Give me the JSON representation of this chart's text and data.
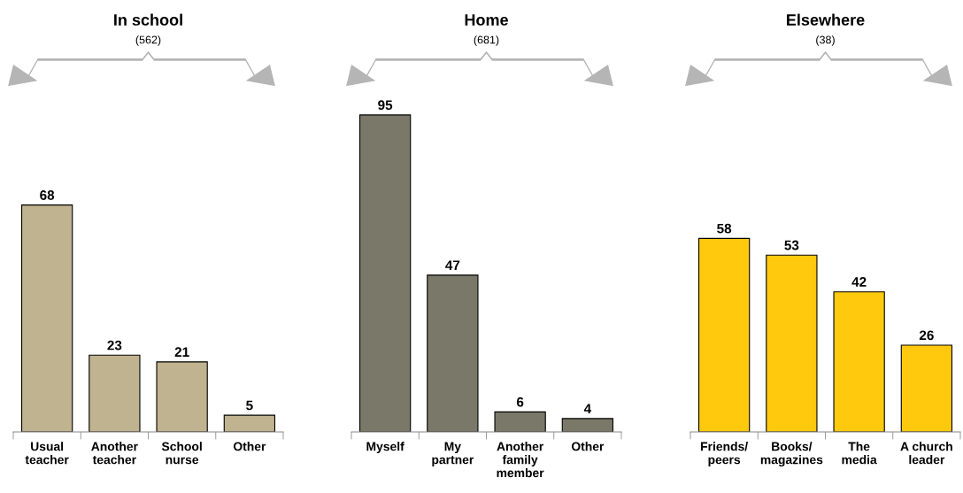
{
  "chart_data": [
    {
      "type": "bar",
      "title": "In school",
      "subtitle": "(562)",
      "categories": [
        "Usual\nteacher",
        "Another\nteacher",
        "School\nnurse",
        "Other"
      ],
      "values": [
        68,
        23,
        21,
        5
      ],
      "color": "#c0b38f",
      "tick_labels": "x",
      "data_labels": true
    },
    {
      "type": "bar",
      "title": "Home",
      "subtitle": "(681)",
      "categories": [
        "Myself",
        "My\npartner",
        "Another\nfamily\nmember",
        "Other"
      ],
      "values": [
        95,
        47,
        6,
        4
      ],
      "color": "#7a7868",
      "tick_labels": "x",
      "data_labels": true
    },
    {
      "type": "bar",
      "title": "Elsewhere",
      "subtitle": "(38)",
      "categories": [
        "Friends/\npeers",
        "Books/\nmagazines",
        "The\nmedia",
        "A church\nleader"
      ],
      "values": [
        58,
        53,
        42,
        26
      ],
      "color": "#ffc90e",
      "tick_labels": "x",
      "data_labels": true
    }
  ]
}
